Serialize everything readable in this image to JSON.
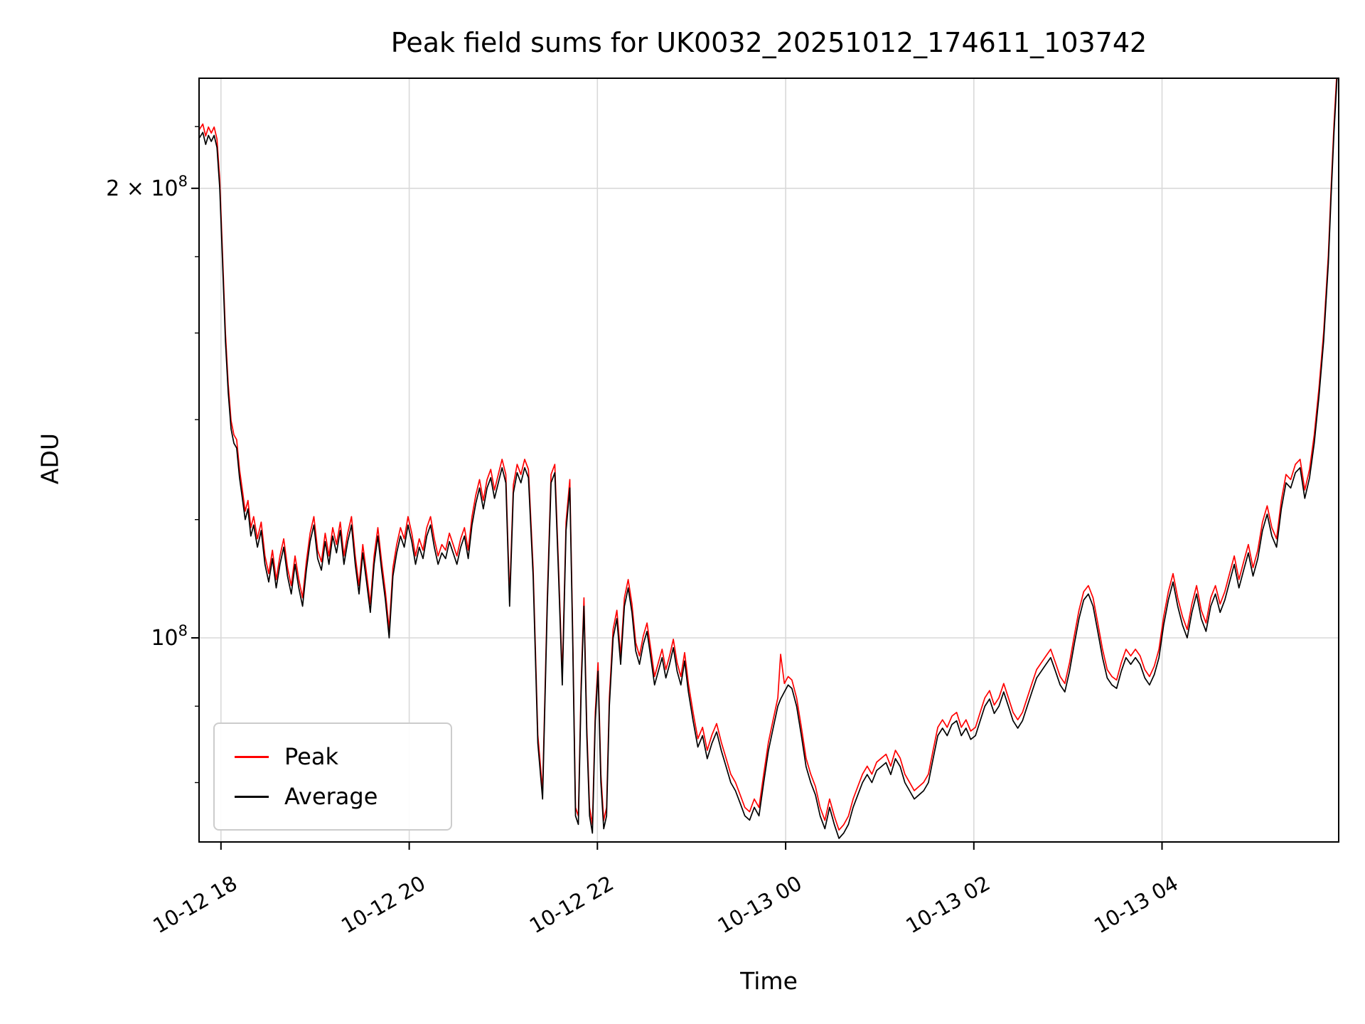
{
  "chart_data": {
    "type": "line",
    "title": "Peak field sums for UK0032_20251012_174611_103742",
    "xlabel": "Time",
    "ylabel": "ADU",
    "value_unit": "1e8 ADU",
    "x_unit": "hours since 10-12 17:46",
    "grid": true,
    "grid_color": "#d9d9d9",
    "legend_position": "lower left",
    "xlim": [
      0,
      12.11
    ],
    "ylim": [
      0.73,
      2.37
    ],
    "x_ticks": [
      {
        "t": 0.233,
        "label": "10-12 18"
      },
      {
        "t": 2.233,
        "label": "10-12 20"
      },
      {
        "t": 4.233,
        "label": "10-12 22"
      },
      {
        "t": 6.233,
        "label": "10-13 00"
      },
      {
        "t": 8.233,
        "label": "10-13 02"
      },
      {
        "t": 10.233,
        "label": "10-13 04"
      }
    ],
    "y_ticks": [
      {
        "v": 1.0,
        "base": "10",
        "exp": "8"
      },
      {
        "v": 2.0,
        "base": "2 × 10",
        "exp": "8"
      }
    ],
    "y_minor_ticks": [
      0.8,
      0.9,
      1.2,
      1.4,
      1.6,
      1.8,
      2.2
    ],
    "x": [
      0.0,
      0.04,
      0.07,
      0.1,
      0.13,
      0.16,
      0.19,
      0.22,
      0.25,
      0.28,
      0.31,
      0.34,
      0.37,
      0.4,
      0.43,
      0.46,
      0.49,
      0.52,
      0.55,
      0.58,
      0.62,
      0.66,
      0.7,
      0.74,
      0.78,
      0.82,
      0.86,
      0.9,
      0.94,
      0.98,
      1.02,
      1.06,
      1.1,
      1.14,
      1.18,
      1.22,
      1.26,
      1.3,
      1.34,
      1.38,
      1.42,
      1.46,
      1.5,
      1.54,
      1.58,
      1.62,
      1.66,
      1.7,
      1.74,
      1.78,
      1.82,
      1.86,
      1.9,
      1.94,
      1.98,
      2.02,
      2.06,
      2.1,
      2.14,
      2.18,
      2.22,
      2.26,
      2.3,
      2.34,
      2.38,
      2.42,
      2.46,
      2.5,
      2.54,
      2.58,
      2.62,
      2.66,
      2.7,
      2.74,
      2.78,
      2.82,
      2.86,
      2.9,
      2.94,
      2.98,
      3.02,
      3.06,
      3.1,
      3.14,
      3.18,
      3.22,
      3.26,
      3.3,
      3.34,
      3.38,
      3.42,
      3.46,
      3.5,
      3.55,
      3.6,
      3.65,
      3.7,
      3.74,
      3.78,
      3.82,
      3.86,
      3.9,
      3.94,
      3.97,
      4.0,
      4.03,
      4.06,
      4.09,
      4.12,
      4.15,
      4.18,
      4.21,
      4.24,
      4.27,
      4.3,
      4.33,
      4.36,
      4.4,
      4.44,
      4.48,
      4.52,
      4.56,
      4.6,
      4.64,
      4.68,
      4.72,
      4.76,
      4.8,
      4.84,
      4.88,
      4.92,
      4.96,
      5.0,
      5.04,
      5.08,
      5.12,
      5.16,
      5.2,
      5.25,
      5.3,
      5.35,
      5.4,
      5.45,
      5.5,
      5.55,
      5.6,
      5.65,
      5.7,
      5.75,
      5.8,
      5.85,
      5.9,
      5.95,
      6.0,
      6.05,
      6.1,
      6.15,
      6.18,
      6.22,
      6.26,
      6.3,
      6.35,
      6.4,
      6.45,
      6.5,
      6.55,
      6.6,
      6.65,
      6.7,
      6.75,
      6.8,
      6.85,
      6.9,
      6.95,
      7.0,
      7.05,
      7.1,
      7.15,
      7.2,
      7.25,
      7.3,
      7.35,
      7.4,
      7.45,
      7.5,
      7.55,
      7.6,
      7.65,
      7.7,
      7.75,
      7.8,
      7.85,
      7.9,
      7.95,
      8.0,
      8.05,
      8.1,
      8.15,
      8.2,
      8.25,
      8.3,
      8.35,
      8.4,
      8.45,
      8.5,
      8.55,
      8.6,
      8.65,
      8.7,
      8.75,
      8.8,
      8.85,
      8.9,
      8.95,
      9.0,
      9.05,
      9.1,
      9.15,
      9.2,
      9.25,
      9.3,
      9.35,
      9.4,
      9.45,
      9.5,
      9.55,
      9.6,
      9.65,
      9.7,
      9.75,
      9.8,
      9.85,
      9.9,
      9.95,
      10.0,
      10.05,
      10.1,
      10.15,
      10.2,
      10.25,
      10.3,
      10.35,
      10.4,
      10.45,
      10.5,
      10.55,
      10.6,
      10.65,
      10.7,
      10.75,
      10.8,
      10.85,
      10.9,
      10.95,
      11.0,
      11.05,
      11.1,
      11.15,
      11.2,
      11.25,
      11.3,
      11.35,
      11.4,
      11.45,
      11.5,
      11.55,
      11.6,
      11.65,
      11.7,
      11.75,
      11.8,
      11.85,
      11.9,
      11.95,
      12.0,
      12.03,
      12.06,
      12.09,
      12.11
    ],
    "series": [
      {
        "name": "Peak",
        "color": "#ff0000",
        "derive": {
          "from": "Average",
          "ratio": 1.013,
          "spikes": [
            [
              6.18,
              0.975
            ]
          ]
        }
      },
      {
        "name": "Average",
        "color": "#000000",
        "values": [
          2.16,
          2.18,
          2.14,
          2.17,
          2.15,
          2.17,
          2.13,
          2.0,
          1.78,
          1.58,
          1.46,
          1.38,
          1.35,
          1.34,
          1.28,
          1.24,
          1.2,
          1.22,
          1.17,
          1.19,
          1.15,
          1.18,
          1.12,
          1.09,
          1.13,
          1.08,
          1.12,
          1.15,
          1.1,
          1.07,
          1.12,
          1.08,
          1.05,
          1.11,
          1.16,
          1.19,
          1.13,
          1.11,
          1.16,
          1.12,
          1.17,
          1.14,
          1.18,
          1.12,
          1.16,
          1.19,
          1.12,
          1.07,
          1.14,
          1.09,
          1.04,
          1.12,
          1.17,
          1.11,
          1.06,
          1.0,
          1.1,
          1.14,
          1.17,
          1.15,
          1.19,
          1.16,
          1.12,
          1.15,
          1.13,
          1.17,
          1.19,
          1.15,
          1.12,
          1.14,
          1.13,
          1.16,
          1.14,
          1.12,
          1.15,
          1.17,
          1.13,
          1.19,
          1.23,
          1.26,
          1.22,
          1.26,
          1.28,
          1.24,
          1.27,
          1.3,
          1.27,
          1.05,
          1.25,
          1.29,
          1.27,
          1.3,
          1.28,
          1.1,
          0.85,
          0.78,
          1.05,
          1.27,
          1.29,
          1.1,
          0.93,
          1.18,
          1.26,
          1.0,
          0.76,
          0.75,
          0.92,
          1.05,
          0.86,
          0.76,
          0.74,
          0.88,
          0.95,
          0.8,
          0.745,
          0.76,
          0.9,
          1.0,
          1.03,
          0.96,
          1.05,
          1.08,
          1.04,
          0.98,
          0.96,
          0.99,
          1.01,
          0.97,
          0.93,
          0.95,
          0.97,
          0.94,
          0.96,
          0.985,
          0.95,
          0.93,
          0.965,
          0.92,
          0.88,
          0.845,
          0.86,
          0.83,
          0.85,
          0.865,
          0.84,
          0.82,
          0.8,
          0.79,
          0.775,
          0.76,
          0.755,
          0.77,
          0.76,
          0.8,
          0.84,
          0.87,
          0.9,
          0.91,
          0.92,
          0.93,
          0.925,
          0.9,
          0.86,
          0.82,
          0.8,
          0.785,
          0.76,
          0.745,
          0.77,
          0.75,
          0.734,
          0.74,
          0.75,
          0.77,
          0.785,
          0.8,
          0.81,
          0.8,
          0.815,
          0.82,
          0.825,
          0.81,
          0.83,
          0.82,
          0.8,
          0.79,
          0.78,
          0.785,
          0.79,
          0.8,
          0.83,
          0.86,
          0.87,
          0.86,
          0.875,
          0.88,
          0.86,
          0.87,
          0.855,
          0.86,
          0.88,
          0.9,
          0.91,
          0.89,
          0.9,
          0.92,
          0.9,
          0.88,
          0.87,
          0.88,
          0.9,
          0.92,
          0.94,
          0.95,
          0.96,
          0.97,
          0.95,
          0.93,
          0.92,
          0.95,
          0.99,
          1.03,
          1.06,
          1.07,
          1.05,
          1.01,
          0.97,
          0.94,
          0.93,
          0.925,
          0.95,
          0.97,
          0.96,
          0.97,
          0.96,
          0.94,
          0.93,
          0.945,
          0.97,
          1.02,
          1.06,
          1.09,
          1.05,
          1.02,
          1.0,
          1.04,
          1.07,
          1.03,
          1.01,
          1.05,
          1.07,
          1.04,
          1.06,
          1.09,
          1.12,
          1.08,
          1.11,
          1.14,
          1.1,
          1.13,
          1.18,
          1.21,
          1.17,
          1.15,
          1.22,
          1.27,
          1.26,
          1.29,
          1.3,
          1.24,
          1.28,
          1.35,
          1.45,
          1.58,
          1.78,
          1.98,
          2.18,
          2.36,
          2.45
        ]
      }
    ]
  }
}
